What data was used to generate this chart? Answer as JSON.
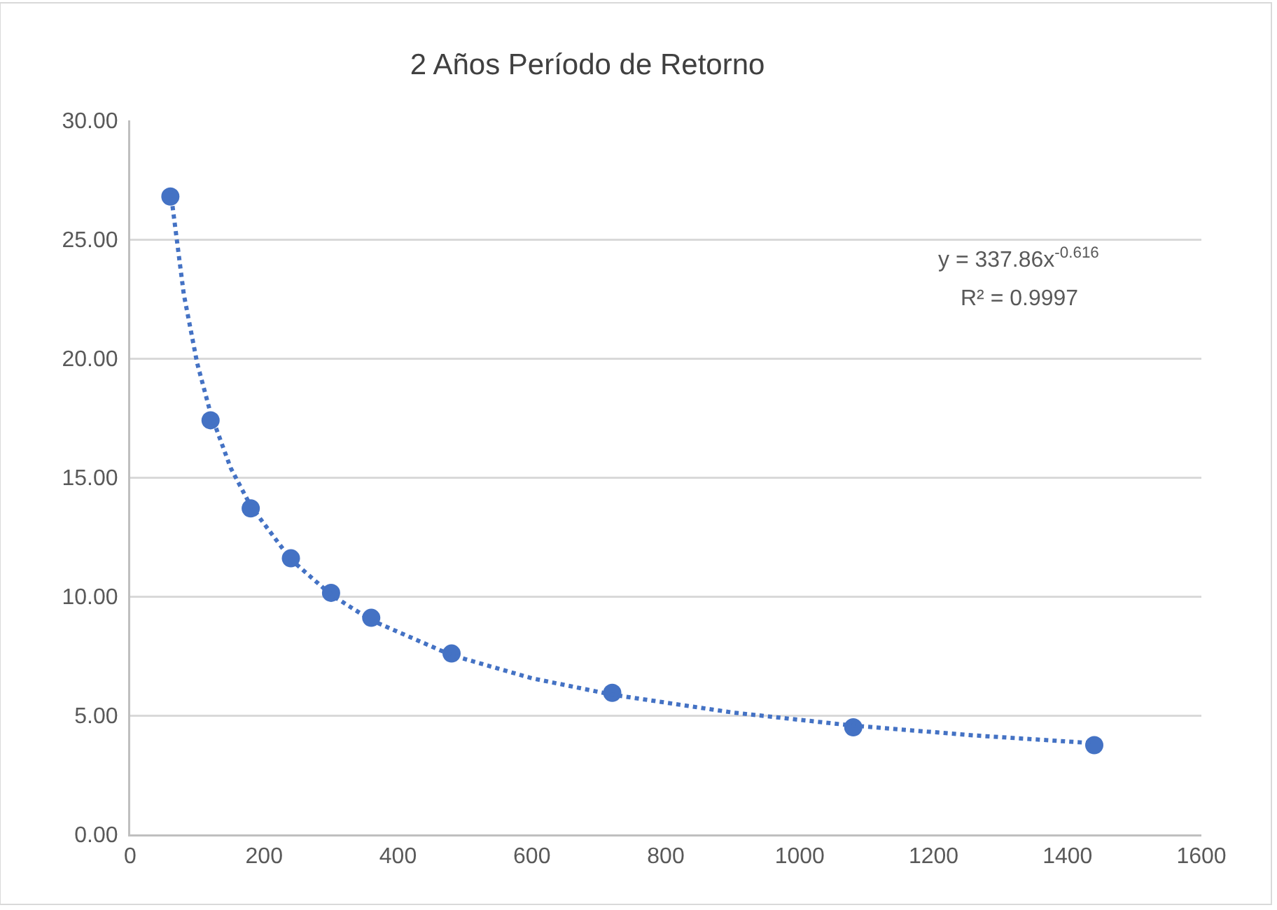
{
  "chart_data": {
    "type": "scatter",
    "title": "2 Años Período de Retorno",
    "series": [
      {
        "color": "#4472c4",
        "marker": "circle",
        "x": [
          60,
          120,
          180,
          240,
          300,
          360,
          480,
          720,
          1080,
          1440
        ],
        "values": [
          26.8,
          17.4,
          13.7,
          11.6,
          10.15,
          9.1,
          7.6,
          5.95,
          4.5,
          3.75
        ]
      },
      {
        "type": "line",
        "color": "#4472c4",
        "marker": "none",
        "line_style": "dotted",
        "x": [
          60,
          80,
          100,
          120,
          150,
          180,
          240,
          300,
          360,
          480,
          600,
          720,
          900,
          1080,
          1260,
          1440
        ],
        "values": [
          27.1,
          22.7,
          19.8,
          17.7,
          15.4,
          13.8,
          11.55,
          10.07,
          9.0,
          7.53,
          6.56,
          5.87,
          5.12,
          4.57,
          4.16,
          3.83
        ]
      }
    ],
    "annotations": [
      "y = 337.86x$^{-0.616}$",
      "R² = 0.9997"
    ],
    "xlim": [
      0,
      1600
    ],
    "xticks": [
      0,
      200,
      400,
      600,
      800,
      1000,
      1200,
      1400,
      1600
    ],
    "ylim": [
      0,
      30
    ],
    "yticks": [
      {
        "value": 0,
        "label": "0.00"
      },
      {
        "value": 5,
        "label": "5.00"
      },
      {
        "value": 10,
        "label": "10.00"
      },
      {
        "value": 15,
        "label": "15.00"
      },
      {
        "value": 20,
        "label": "20.00"
      },
      {
        "value": 25,
        "label": "25.00"
      },
      {
        "value": 30,
        "label": "30.00"
      }
    ],
    "grid": "y"
  }
}
